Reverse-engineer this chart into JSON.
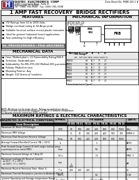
{
  "title": "1 AMP FAST RECOVERY  BRIDGE RECTIFIERS",
  "company_name": "DIOTEC  ELECTRONICS  CORP",
  "company_addr1": "2400 Centennial Blvd., Suite B",
  "company_addr2": "Gainesville, FL 32601",
  "company_tel": "Tel:  (386) 785-9500   Fax: (386) 785-7698",
  "data_sheet_no": "Data Sheet No. FRBR-100-1 B",
  "features_title": "FEATURES",
  "features": [
    "PIV Ratings from 50 to 1000 Volts",
    "Bridge overload rating at 50 Amps peak",
    "Suitable for most surface mount plastic consumer lists",
    "Ideal for general industrial based applications",
    "Fast switching for high efficiency"
  ],
  "ul_text": "UL  FR(CO)2963(E3 - FILE #E174093",
  "mech_data_title": "MECHANICAL DATA",
  "mech_items": [
    "Case: Molded plastic, UL Flammability Rating/94V-0",
    "Terminals: Solderable pins",
    "Solderability: Per MIL-STD-202 Method 208 guaranteed",
    "Polarity: Marked on case",
    "Mounting Position: Any",
    "Weight: 500 Grams of (modules)"
  ],
  "mech_info_title": "MECHANICAL INFORMATION",
  "table_title": "MAXIMUM RATINGS & ELECTRICAL CHARACTERISTICS",
  "bg_white": "#ffffff",
  "bg_light_gray": "#e8e8e8",
  "bg_dark_header": "#1a1a1a",
  "bg_med_gray": "#999999",
  "bg_header_gray": "#bbbbbb",
  "logo_red": "#cc2222",
  "logo_blue": "#2233aa",
  "table_rows": [
    {
      "param": "Maximum DC Block (PIV/Voltage)",
      "symbol": "VDC",
      "values": [
        "50",
        "100",
        "200",
        "400",
        "600",
        "800",
        "1000"
      ],
      "unit": "Volts",
      "span": false
    },
    {
      "param": "Maximum RMS Voltage",
      "symbol": "",
      "values": [
        "35",
        "70",
        "140",
        "280",
        "420",
        "560",
        "700"
      ],
      "unit": "VRMS V",
      "span": false
    },
    {
      "param": "Maximum Peak Recurrent Reverse Voltage",
      "symbol": "Vrrm",
      "values": [
        "50",
        "100",
        "200",
        "400",
        "600",
        "800",
        "1000"
      ],
      "unit": "",
      "span": false
    },
    {
      "param": "Average Forward Rectified Current (TA = 40°C)",
      "symbol": "Io",
      "values": [
        "1"
      ],
      "unit": "AMPS",
      "span": true
    },
    {
      "param": "Peak Forward Surge Current (8.3mS single half-sin wave\nsuperimposed on rated RMS)",
      "symbol": "Ifsm",
      "values": [
        "50"
      ],
      "unit": "AMPS",
      "span": true
    },
    {
      "param": "Maximum Forward Voltage at 1 Amp DC",
      "symbol": "Vf a",
      "values": [
        "1.1"
      ],
      "unit": "MAX. V",
      "span": true
    },
    {
      "param": "Maximum Leakage DC Reverse Current\n  at 25°C  (T = 25°C)\n  at 100°C  (T = 100°C)",
      "symbol": "Iom",
      "values": [
        "5",
        "100"
      ],
      "unit": "μA",
      "span": false,
      "two_vals": true
    },
    {
      "param": "Maximum Reverse Recovery Time  (Note 1)",
      "symbol": "T rr",
      "values": [
        "200",
        "200",
        "200"
      ],
      "unit": "nS",
      "span": false,
      "three_vals": true
    },
    {
      "param": "Maximum Thermal Resistance, Junction to Ambient (Rth-JA)",
      "symbol": "Rth s",
      "values": [
        "50"
      ],
      "unit": "°C/W",
      "span": true
    },
    {
      "param": "Junction Operating and Storage temperature Range",
      "symbol": "T j - Tstg",
      "values": [
        "-55 to +85"
      ],
      "unit": "°C",
      "span": true
    }
  ],
  "fr_series": [
    "FR\n005",
    "FR\n01",
    "FR\n02",
    "FR\n04",
    "FR\n06",
    "FR\n08",
    "FR\n10"
  ],
  "dim_table_headers": [
    "Part",
    "A",
    "B",
    "C",
    "D"
  ],
  "dim_table_data": [
    [
      "FRB005",
      "9.0",
      "10.7",
      "7.7",
      "2.7"
    ],
    [
      "FRB01",
      "9.0",
      "10.7",
      "7.7",
      "2.7"
    ],
    [
      "FRB02",
      "9.0",
      "10.7",
      "7.7",
      "2.7"
    ],
    [
      "FRB04",
      "9.0",
      "10.7",
      "7.7",
      "2.7"
    ],
    [
      "FRB06",
      "9.0",
      "10.7",
      "7.7",
      "2.7"
    ],
    [
      "FRB08",
      "9.0",
      "10.7",
      "7.7",
      "2.7"
    ],
    [
      "FRB10",
      "9.0",
      "10.7",
      "7.7",
      "2.7"
    ]
  ]
}
